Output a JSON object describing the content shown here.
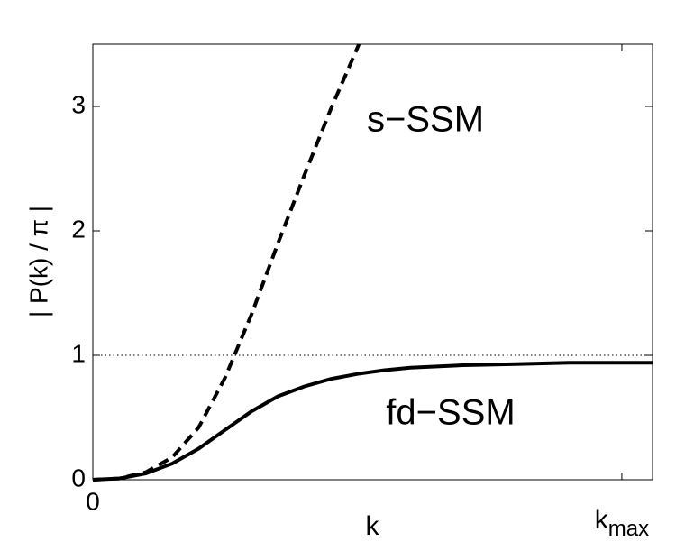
{
  "chart_data": {
    "type": "line",
    "y_label": "| P(k) / π |",
    "x_label": "k",
    "xlim": [
      0,
      1.058
    ],
    "ylim": [
      0,
      3.5
    ],
    "xticks": [
      0,
      {
        "value": 1,
        "label": "k",
        "subscript": "max"
      }
    ],
    "yticks": [
      0,
      1,
      2,
      3
    ],
    "reference_line": 1,
    "series": [
      {
        "name": "fd−SSM",
        "color": "#000000",
        "dash": "solid",
        "x": [
          0,
          0.05,
          0.1,
          0.15,
          0.2,
          0.25,
          0.3,
          0.35,
          0.4,
          0.45,
          0.5,
          0.55,
          0.6,
          0.7,
          0.8,
          0.9,
          1.0,
          1.058
        ],
        "values": [
          0,
          0.01,
          0.05,
          0.13,
          0.25,
          0.4,
          0.55,
          0.67,
          0.75,
          0.81,
          0.85,
          0.88,
          0.9,
          0.92,
          0.93,
          0.94,
          0.94,
          0.94
        ]
      },
      {
        "name": "s−SSM",
        "color": "#000000",
        "dash": "dashed",
        "x": [
          0,
          0.05,
          0.1,
          0.15,
          0.2,
          0.25,
          0.3,
          0.35,
          0.4,
          0.45,
          0.5,
          0.503
        ],
        "values": [
          0,
          0.01,
          0.06,
          0.18,
          0.42,
          0.82,
          1.33,
          1.9,
          2.45,
          2.98,
          3.47,
          3.5
        ]
      }
    ]
  }
}
